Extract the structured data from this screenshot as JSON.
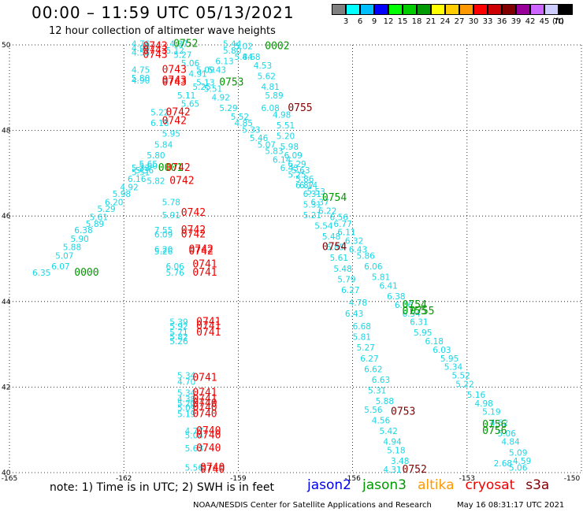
{
  "title": "00:00 – 11:59 UTC 05/13/2021",
  "subtitle": "12 hour collection of altimeter wave heights",
  "colorbar": {
    "colors": [
      "#808080",
      "#00ffff",
      "#00bfff",
      "#0000ff",
      "#00ff00",
      "#00cc00",
      "#009900",
      "#ffff00",
      "#ffcc00",
      "#ff9900",
      "#ff0000",
      "#cc0000",
      "#800000",
      "#990099",
      "#cc66ff",
      "#ccccff",
      "#000000"
    ],
    "labels": [
      "3",
      "6",
      "9",
      "12",
      "15",
      "18",
      "21",
      "24",
      "27",
      "30",
      "33",
      "36",
      "39",
      "42",
      "45",
      "70"
    ],
    "unit": "(ft)"
  },
  "axes": {
    "y_ticks": [
      "50",
      "48",
      "46",
      "44",
      "42",
      "40"
    ],
    "x_ticks": [
      "-165",
      "-162",
      "-159",
      "-156",
      "-153",
      "-150"
    ]
  },
  "note": "note: 1) Time is in UTC; 2) SWH is in feet",
  "legend": [
    {
      "name": "jason2",
      "color": "#0000ee"
    },
    {
      "name": "jason3",
      "color": "#009900"
    },
    {
      "name": "altika",
      "color": "#ff9900"
    },
    {
      "name": "cryosat",
      "color": "#ee0000"
    },
    {
      "name": "s3a",
      "color": "#800000"
    }
  ],
  "footer": {
    "left": "NOAA/NESDIS Center for Satellite Applications and Research",
    "right": "May 16 08:31:17 UTC 2021"
  },
  "chart_data": {
    "type": "scatter",
    "xlim": [
      -165,
      -150
    ],
    "ylim": [
      40,
      50
    ],
    "grid": true,
    "swh_color": "#16d7e6",
    "swh_points": [
      {
        "x": -164.4,
        "y": 44.6,
        "v": "6.35"
      },
      {
        "x": -163.9,
        "y": 44.75,
        "v": "6.07"
      },
      {
        "x": -163.8,
        "y": 45.0,
        "v": "5.07"
      },
      {
        "x": -163.6,
        "y": 45.2,
        "v": "5.88"
      },
      {
        "x": -163.4,
        "y": 45.4,
        "v": "5.90"
      },
      {
        "x": -163.3,
        "y": 45.6,
        "v": "6.38"
      },
      {
        "x": -163.0,
        "y": 45.75,
        "v": "5.89"
      },
      {
        "x": -162.9,
        "y": 45.9,
        "v": "5.61"
      },
      {
        "x": -162.7,
        "y": 46.1,
        "v": "5.29"
      },
      {
        "x": -162.5,
        "y": 46.25,
        "v": "6.20"
      },
      {
        "x": -162.3,
        "y": 46.45,
        "v": "5.98"
      },
      {
        "x": -162.1,
        "y": 46.6,
        "v": "4.92"
      },
      {
        "x": -161.9,
        "y": 46.8,
        "v": "6.16"
      },
      {
        "x": -161.8,
        "y": 46.95,
        "v": "5.51"
      },
      {
        "x": -161.6,
        "y": 47.15,
        "v": "5.65"
      },
      {
        "x": -161.4,
        "y": 47.35,
        "v": "5.80"
      },
      {
        "x": -161.2,
        "y": 47.6,
        "v": "5.84"
      },
      {
        "x": -161.0,
        "y": 47.85,
        "v": "5.95"
      },
      {
        "x": -161.3,
        "y": 48.1,
        "v": "6.18"
      },
      {
        "x": -161.3,
        "y": 48.35,
        "v": "5.22"
      },
      {
        "x": -160.5,
        "y": 48.55,
        "v": "5.65"
      },
      {
        "x": -160.6,
        "y": 48.75,
        "v": "5.11"
      },
      {
        "x": -160.2,
        "y": 48.95,
        "v": "5.25"
      },
      {
        "x": -160.1,
        "y": 49.05,
        "v": "5.13"
      },
      {
        "x": -160.3,
        "y": 49.25,
        "v": "4.91"
      },
      {
        "x": -160.1,
        "y": 49.35,
        "v": "5.09"
      },
      {
        "x": -159.8,
        "y": 49.35,
        "v": "5.43"
      },
      {
        "x": -160.5,
        "y": 49.5,
        "v": "5.06"
      },
      {
        "x": -160.7,
        "y": 49.7,
        "v": "5.27"
      },
      {
        "x": -160.9,
        "y": 49.8,
        "v": "5.12"
      },
      {
        "x": -160.8,
        "y": 49.95,
        "v": "4.87"
      },
      {
        "x": -161.8,
        "y": 49.75,
        "v": "4.55"
      },
      {
        "x": -161.8,
        "y": 49.85,
        "v": "4.90"
      },
      {
        "x": -161.8,
        "y": 49.95,
        "v": "4.76"
      },
      {
        "x": -161.8,
        "y": 49.1,
        "v": "4.90"
      },
      {
        "x": -161.8,
        "y": 49.15,
        "v": "5.80"
      },
      {
        "x": -161.8,
        "y": 49.35,
        "v": "4.75"
      },
      {
        "x": -159.9,
        "y": 48.9,
        "v": "5.51"
      },
      {
        "x": -159.7,
        "y": 48.7,
        "v": "4.92"
      },
      {
        "x": -159.5,
        "y": 48.45,
        "v": "5.29"
      },
      {
        "x": -159.2,
        "y": 48.25,
        "v": "5.52"
      },
      {
        "x": -159.1,
        "y": 48.1,
        "v": "4.85"
      },
      {
        "x": -158.9,
        "y": 47.95,
        "v": "5.33"
      },
      {
        "x": -158.7,
        "y": 47.75,
        "v": "5.46"
      },
      {
        "x": -158.5,
        "y": 47.6,
        "v": "5.07"
      },
      {
        "x": -158.3,
        "y": 47.45,
        "v": "5.83"
      },
      {
        "x": -158.1,
        "y": 47.25,
        "v": "6.14"
      },
      {
        "x": -157.9,
        "y": 47.05,
        "v": "6.43"
      },
      {
        "x": -157.7,
        "y": 46.9,
        "v": "5.25"
      },
      {
        "x": -157.5,
        "y": 46.65,
        "v": "6.87"
      },
      {
        "x": -157.3,
        "y": 46.45,
        "v": "6.31"
      },
      {
        "x": -157.3,
        "y": 46.2,
        "v": "5.31"
      },
      {
        "x": -157.3,
        "y": 45.95,
        "v": "5.21"
      },
      {
        "x": -157.0,
        "y": 45.7,
        "v": "5.54"
      },
      {
        "x": -156.8,
        "y": 45.45,
        "v": "5.48"
      },
      {
        "x": -156.7,
        "y": 45.2,
        "v": "6.85"
      },
      {
        "x": -156.6,
        "y": 44.95,
        "v": "5.61"
      },
      {
        "x": -156.5,
        "y": 44.7,
        "v": "5.48"
      },
      {
        "x": -156.4,
        "y": 44.45,
        "v": "5.79"
      },
      {
        "x": -156.3,
        "y": 44.2,
        "v": "6.27"
      },
      {
        "x": -156.1,
        "y": 43.9,
        "v": "4.78"
      },
      {
        "x": -156.2,
        "y": 43.65,
        "v": "6.43"
      },
      {
        "x": -156.0,
        "y": 43.35,
        "v": "6.68"
      },
      {
        "x": -156.0,
        "y": 43.1,
        "v": "5.81"
      },
      {
        "x": -155.9,
        "y": 42.85,
        "v": "5.27"
      },
      {
        "x": -155.8,
        "y": 42.6,
        "v": "6.27"
      },
      {
        "x": -155.7,
        "y": 42.35,
        "v": "6.62"
      },
      {
        "x": -155.5,
        "y": 42.1,
        "v": "6.63"
      },
      {
        "x": -155.6,
        "y": 41.85,
        "v": "5.31"
      },
      {
        "x": -155.4,
        "y": 41.6,
        "v": "5.88"
      },
      {
        "x": -155.7,
        "y": 41.4,
        "v": "5.56"
      },
      {
        "x": -155.5,
        "y": 41.15,
        "v": "4.56"
      },
      {
        "x": -155.3,
        "y": 40.9,
        "v": "5.42"
      },
      {
        "x": -155.2,
        "y": 40.65,
        "v": "4.94"
      },
      {
        "x": -155.1,
        "y": 40.45,
        "v": "5.18"
      },
      {
        "x": -155.0,
        "y": 40.2,
        "v": "3.48"
      },
      {
        "x": -155.2,
        "y": 40.0,
        "v": "4.31"
      },
      {
        "x": -159.4,
        "y": 49.95,
        "v": "5.44"
      },
      {
        "x": -159.1,
        "y": 49.9,
        "v": "5.02"
      },
      {
        "x": -159.4,
        "y": 49.8,
        "v": "5.80"
      },
      {
        "x": -159.1,
        "y": 49.65,
        "v": "5.84"
      },
      {
        "x": -158.9,
        "y": 49.65,
        "v": "4.68"
      },
      {
        "x": -159.6,
        "y": 49.55,
        "v": "6.13"
      },
      {
        "x": -158.6,
        "y": 49.45,
        "v": "4.53"
      },
      {
        "x": -158.5,
        "y": 49.2,
        "v": "5.62"
      },
      {
        "x": -158.4,
        "y": 48.95,
        "v": "4.81"
      },
      {
        "x": -158.3,
        "y": 48.75,
        "v": "5.89"
      },
      {
        "x": -158.4,
        "y": 48.45,
        "v": "6.08"
      },
      {
        "x": -158.1,
        "y": 48.3,
        "v": "4.98"
      },
      {
        "x": -158.0,
        "y": 48.05,
        "v": "5.51"
      },
      {
        "x": -158.0,
        "y": 47.8,
        "v": "5.20"
      },
      {
        "x": -157.9,
        "y": 47.55,
        "v": "5.98"
      },
      {
        "x": -157.8,
        "y": 47.35,
        "v": "6.09"
      },
      {
        "x": -157.7,
        "y": 47.15,
        "v": "6.29"
      },
      {
        "x": -157.6,
        "y": 47.0,
        "v": "5.63"
      },
      {
        "x": -157.5,
        "y": 46.8,
        "v": "5.86"
      },
      {
        "x": -157.4,
        "y": 46.65,
        "v": "6.14"
      },
      {
        "x": -157.2,
        "y": 46.5,
        "v": "5.53"
      },
      {
        "x": -157.1,
        "y": 46.25,
        "v": "6.37"
      },
      {
        "x": -156.9,
        "y": 46.05,
        "v": "6.22"
      },
      {
        "x": -156.6,
        "y": 45.9,
        "v": "6.56"
      },
      {
        "x": -156.5,
        "y": 45.75,
        "v": "6.77"
      },
      {
        "x": -156.4,
        "y": 45.55,
        "v": "6.11"
      },
      {
        "x": -156.2,
        "y": 45.35,
        "v": "6.32"
      },
      {
        "x": -156.1,
        "y": 45.15,
        "v": "6.43"
      },
      {
        "x": -155.9,
        "y": 45.0,
        "v": "5.86"
      },
      {
        "x": -155.7,
        "y": 44.75,
        "v": "6.06"
      },
      {
        "x": -155.5,
        "y": 44.5,
        "v": "5.81"
      },
      {
        "x": -155.3,
        "y": 44.3,
        "v": "6.41"
      },
      {
        "x": -155.1,
        "y": 44.05,
        "v": "6.38"
      },
      {
        "x": -154.9,
        "y": 43.85,
        "v": "6.06"
      },
      {
        "x": -154.7,
        "y": 43.65,
        "v": "6.54"
      },
      {
        "x": -154.5,
        "y": 43.45,
        "v": "6.31"
      },
      {
        "x": -154.4,
        "y": 43.2,
        "v": "5.95"
      },
      {
        "x": -154.1,
        "y": 43.0,
        "v": "6.18"
      },
      {
        "x": -153.9,
        "y": 42.8,
        "v": "6.03"
      },
      {
        "x": -153.7,
        "y": 42.6,
        "v": "5.95"
      },
      {
        "x": -153.6,
        "y": 42.4,
        "v": "5.34"
      },
      {
        "x": -153.4,
        "y": 42.2,
        "v": "5.52"
      },
      {
        "x": -153.3,
        "y": 42.0,
        "v": "5.22"
      },
      {
        "x": -153.0,
        "y": 41.75,
        "v": "5.16"
      },
      {
        "x": -152.8,
        "y": 41.55,
        "v": "4.98"
      },
      {
        "x": -152.6,
        "y": 41.35,
        "v": "5.19"
      },
      {
        "x": -152.4,
        "y": 41.1,
        "v": "4.62"
      },
      {
        "x": -152.2,
        "y": 40.85,
        "v": "5.06"
      },
      {
        "x": -152.1,
        "y": 40.65,
        "v": "4.84"
      },
      {
        "x": -151.9,
        "y": 40.4,
        "v": "5.09"
      },
      {
        "x": -151.8,
        "y": 40.2,
        "v": "4.59"
      },
      {
        "x": -151.9,
        "y": 40.05,
        "v": "5.06"
      },
      {
        "x": -161.0,
        "y": 46.25,
        "v": "5.78"
      },
      {
        "x": -161.0,
        "y": 45.95,
        "v": "5.91"
      },
      {
        "x": -161.2,
        "y": 45.6,
        "v": "7.55"
      },
      {
        "x": -161.2,
        "y": 45.5,
        "v": "6.09"
      },
      {
        "x": -161.2,
        "y": 45.15,
        "v": "6.20"
      },
      {
        "x": -161.2,
        "y": 45.1,
        "v": "5.26"
      },
      {
        "x": -160.9,
        "y": 44.75,
        "v": "6.06"
      },
      {
        "x": -160.9,
        "y": 44.6,
        "v": "5.76"
      },
      {
        "x": -160.8,
        "y": 43.45,
        "v": "5.39"
      },
      {
        "x": -160.8,
        "y": 43.35,
        "v": "5.92"
      },
      {
        "x": -160.8,
        "y": 43.2,
        "v": "5.71"
      },
      {
        "x": -160.8,
        "y": 43.1,
        "v": "5.82"
      },
      {
        "x": -160.8,
        "y": 43.0,
        "v": "5.26"
      },
      {
        "x": -160.6,
        "y": 42.2,
        "v": "5.34"
      },
      {
        "x": -160.6,
        "y": 42.05,
        "v": "4.70"
      },
      {
        "x": -160.6,
        "y": 41.8,
        "v": "5.34"
      },
      {
        "x": -160.6,
        "y": 41.65,
        "v": "4.38"
      },
      {
        "x": -160.6,
        "y": 41.55,
        "v": "5.20"
      },
      {
        "x": -160.6,
        "y": 41.45,
        "v": "5.09"
      },
      {
        "x": -160.6,
        "y": 41.3,
        "v": "5.19"
      },
      {
        "x": -160.4,
        "y": 40.9,
        "v": "4.77"
      },
      {
        "x": -160.4,
        "y": 40.8,
        "v": "5.04"
      },
      {
        "x": -160.4,
        "y": 40.5,
        "v": "5.63"
      },
      {
        "x": -160.4,
        "y": 40.05,
        "v": "5.56"
      },
      {
        "x": -161.8,
        "y": 47.05,
        "v": "5.33"
      },
      {
        "x": -161.7,
        "y": 47.0,
        "v": "5.36"
      },
      {
        "x": -161.6,
        "y": 47.1,
        "v": "5.60"
      },
      {
        "x": -161.4,
        "y": 46.75,
        "v": "5.82"
      }
    ],
    "time_labels": [
      {
        "x": -163.3,
        "y": 44.6,
        "t": "0000",
        "sat": "jason3"
      },
      {
        "x": -161.1,
        "y": 47.05,
        "t": "0001",
        "sat": "jason3"
      },
      {
        "x": -160.7,
        "y": 49.95,
        "t": "0752",
        "sat": "jason3"
      },
      {
        "x": -158.3,
        "y": 49.9,
        "t": "0002",
        "sat": "jason3"
      },
      {
        "x": -159.5,
        "y": 49.05,
        "t": "0753",
        "sat": "jason3"
      },
      {
        "x": -156.8,
        "y": 46.35,
        "t": "0754",
        "sat": "jason3"
      },
      {
        "x": -154.7,
        "y": 43.85,
        "t": "0754",
        "sat": "jason3"
      },
      {
        "x": -154.7,
        "y": 43.7,
        "t": "0755",
        "sat": "jason3"
      },
      {
        "x": -154.5,
        "y": 43.7,
        "t": "0755",
        "sat": "jason3"
      },
      {
        "x": -152.6,
        "y": 41.05,
        "t": "0756",
        "sat": "jason3"
      },
      {
        "x": -152.6,
        "y": 40.9,
        "t": "0756",
        "sat": "jason3"
      },
      {
        "x": -161.5,
        "y": 49.9,
        "t": "0743",
        "sat": "cryosat"
      },
      {
        "x": -161.5,
        "y": 49.8,
        "t": "0743",
        "sat": "cryosat"
      },
      {
        "x": -161.5,
        "y": 49.7,
        "t": "0743",
        "sat": "cryosat"
      },
      {
        "x": -161.0,
        "y": 49.35,
        "t": "0743",
        "sat": "cryosat"
      },
      {
        "x": -161.0,
        "y": 49.1,
        "t": "0743",
        "sat": "cryosat"
      },
      {
        "x": -161.0,
        "y": 49.05,
        "t": "0743",
        "sat": "cryosat"
      },
      {
        "x": -160.9,
        "y": 48.35,
        "t": "0742",
        "sat": "cryosat"
      },
      {
        "x": -161.0,
        "y": 48.15,
        "t": "0742",
        "sat": "cryosat"
      },
      {
        "x": -160.9,
        "y": 47.05,
        "t": "0742",
        "sat": "cryosat"
      },
      {
        "x": -160.8,
        "y": 46.75,
        "t": "0742",
        "sat": "cryosat"
      },
      {
        "x": -160.5,
        "y": 46.0,
        "t": "0742",
        "sat": "cryosat"
      },
      {
        "x": -160.5,
        "y": 45.6,
        "t": "0742",
        "sat": "cryosat"
      },
      {
        "x": -160.5,
        "y": 45.5,
        "t": "0742",
        "sat": "cryosat"
      },
      {
        "x": -160.3,
        "y": 45.15,
        "t": "0742",
        "sat": "cryosat"
      },
      {
        "x": -160.3,
        "y": 45.1,
        "t": "0742",
        "sat": "cryosat"
      },
      {
        "x": -160.2,
        "y": 44.8,
        "t": "0741",
        "sat": "cryosat"
      },
      {
        "x": -160.2,
        "y": 44.6,
        "t": "0741",
        "sat": "cryosat"
      },
      {
        "x": -160.1,
        "y": 43.45,
        "t": "0741",
        "sat": "cryosat"
      },
      {
        "x": -160.1,
        "y": 43.35,
        "t": "0741",
        "sat": "cryosat"
      },
      {
        "x": -160.1,
        "y": 43.2,
        "t": "0741",
        "sat": "cryosat"
      },
      {
        "x": -160.2,
        "y": 42.15,
        "t": "0741",
        "sat": "cryosat"
      },
      {
        "x": -160.2,
        "y": 41.8,
        "t": "0741",
        "sat": "cryosat"
      },
      {
        "x": -160.2,
        "y": 41.65,
        "t": "0741",
        "sat": "cryosat"
      },
      {
        "x": -160.2,
        "y": 41.55,
        "t": "0740",
        "sat": "cryosat"
      },
      {
        "x": -160.2,
        "y": 41.45,
        "t": "0740",
        "sat": "cryosat"
      },
      {
        "x": -160.2,
        "y": 41.3,
        "t": "0740",
        "sat": "cryosat"
      },
      {
        "x": -160.1,
        "y": 40.9,
        "t": "0740",
        "sat": "cryosat"
      },
      {
        "x": -160.1,
        "y": 40.8,
        "t": "0740",
        "sat": "cryosat"
      },
      {
        "x": -160.1,
        "y": 40.5,
        "t": "0740",
        "sat": "cryosat"
      },
      {
        "x": -160.0,
        "y": 40.05,
        "t": "0740",
        "sat": "cryosat"
      },
      {
        "x": -160.0,
        "y": 40.0,
        "t": "0740",
        "sat": "cryosat"
      },
      {
        "x": -157.7,
        "y": 48.45,
        "t": "0755",
        "sat": "s3a"
      },
      {
        "x": -156.8,
        "y": 45.2,
        "t": "0754",
        "sat": "s3a"
      },
      {
        "x": -155.0,
        "y": 41.35,
        "t": "0753",
        "sat": "s3a"
      },
      {
        "x": -154.7,
        "y": 40.0,
        "t": "0752",
        "sat": "s3a"
      }
    ],
    "gray_labels": [
      {
        "x": -152.3,
        "y": 40.15,
        "v": "2.68"
      }
    ]
  }
}
